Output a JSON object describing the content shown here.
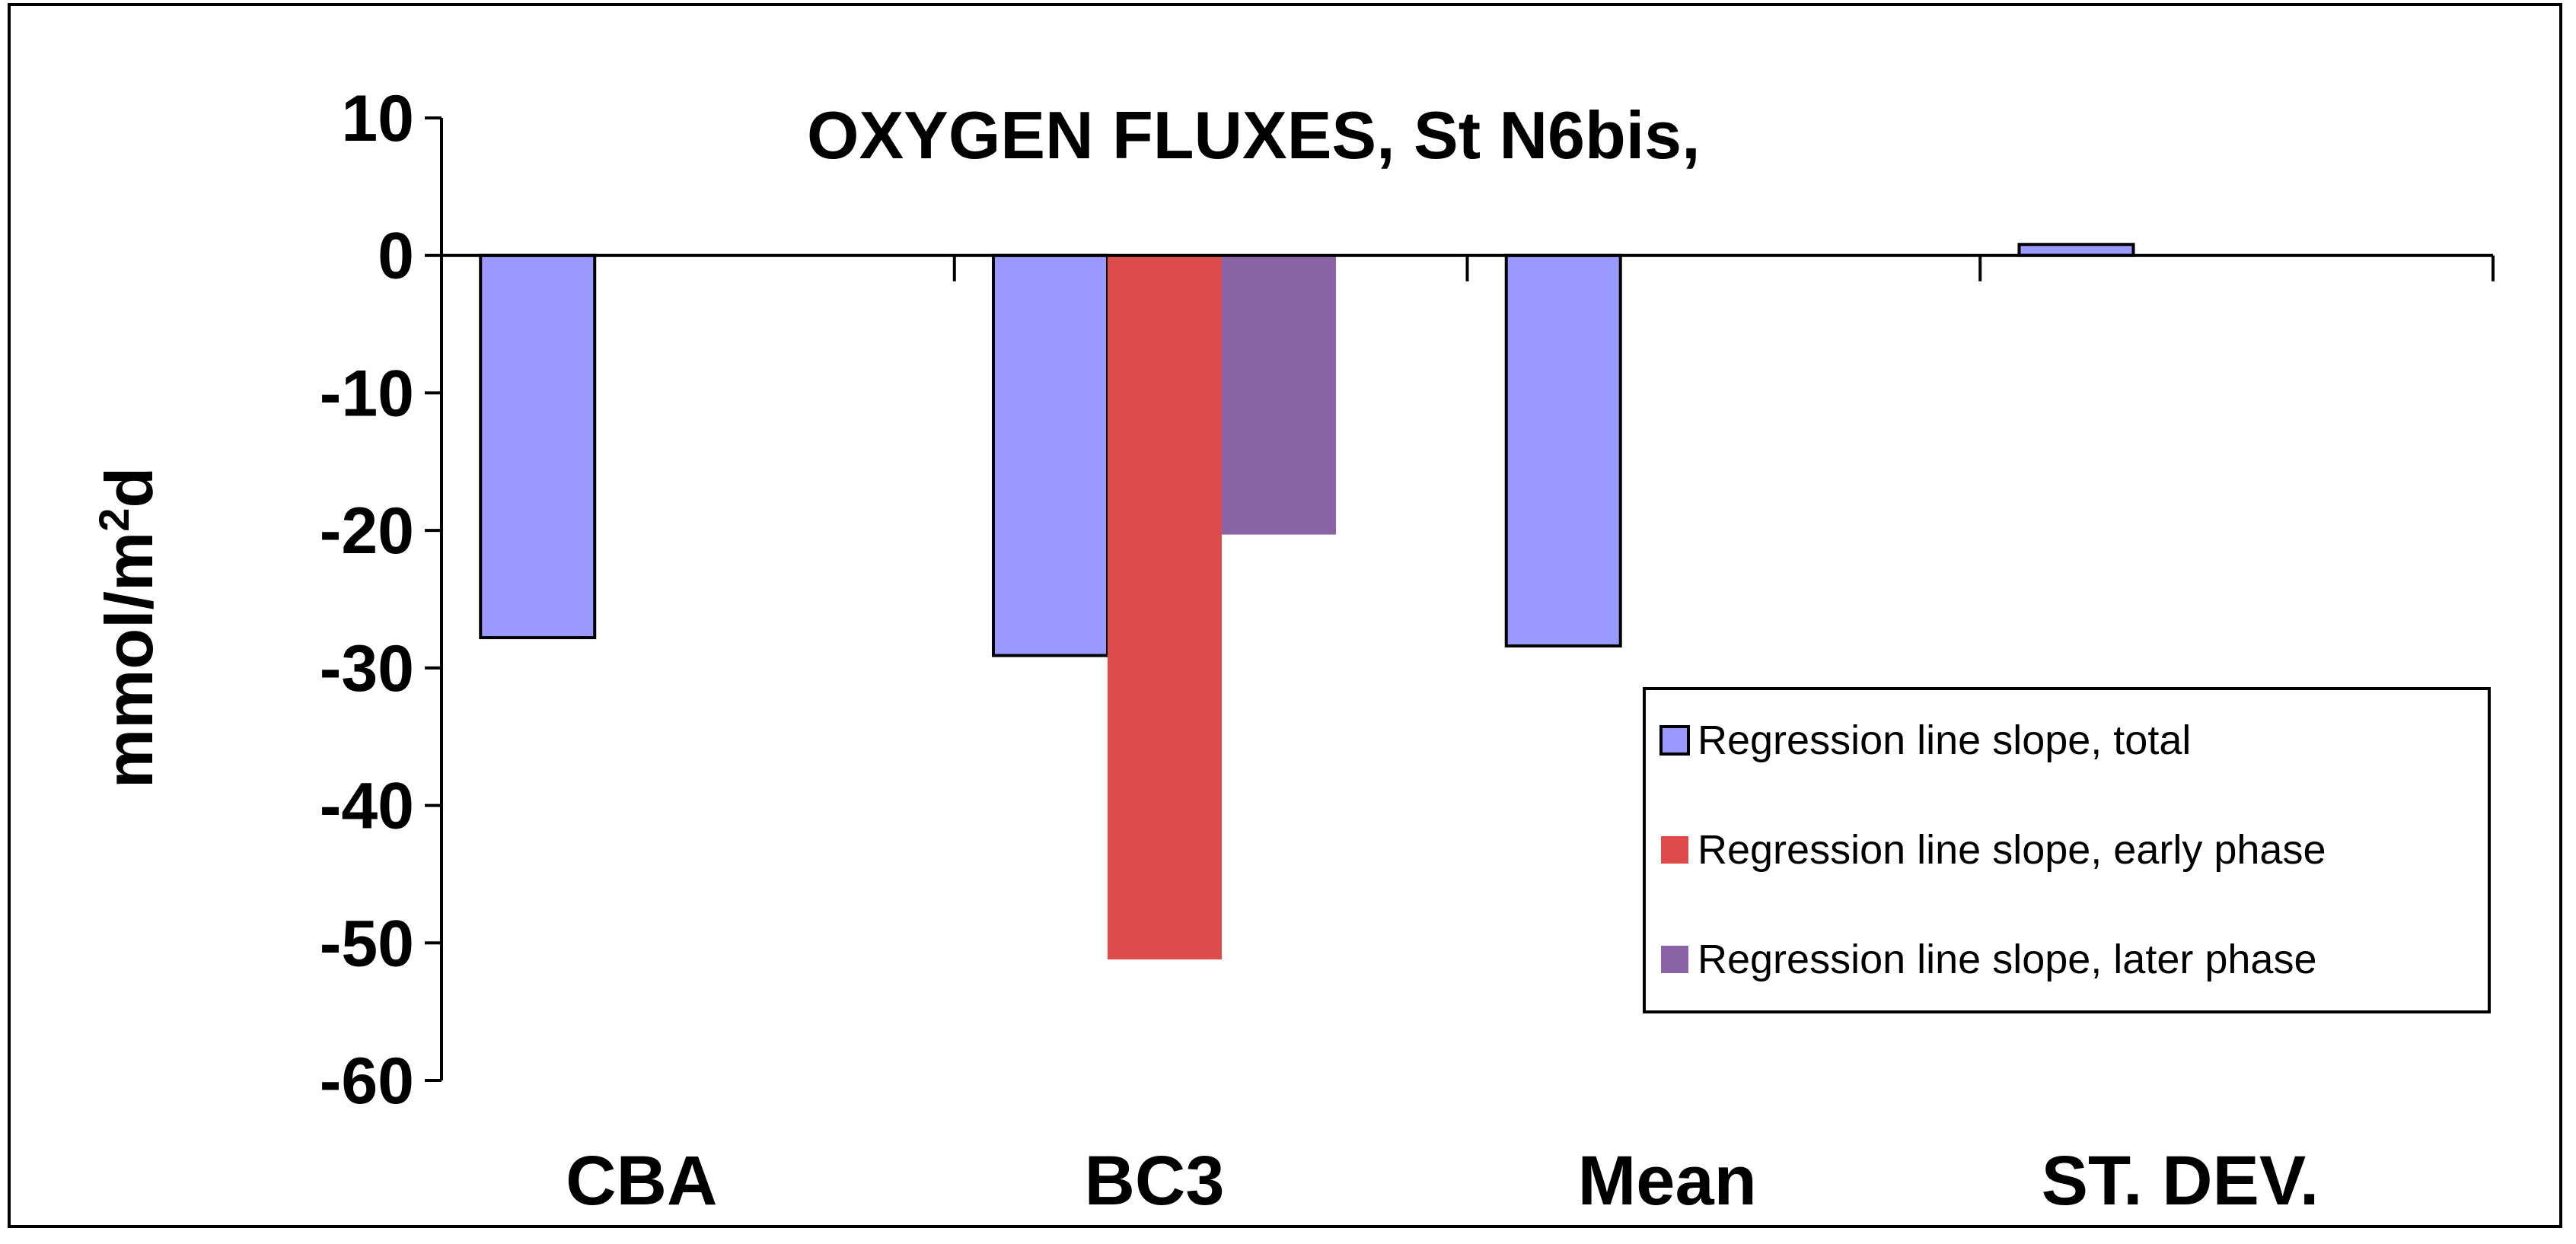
{
  "chart_data": {
    "type": "bar",
    "title": "OXYGEN FLUXES, St N6bis,",
    "xlabel": "",
    "ylabel_prefix": "mmol/m",
    "ylabel_sup": "2",
    "ylabel_suffix": "d",
    "ylim": [
      -60,
      10
    ],
    "yticks": [
      10,
      0,
      -10,
      -20,
      -30,
      -40,
      -50,
      -60
    ],
    "categories": [
      "CBA",
      "BC3",
      "Mean",
      "ST. DEV."
    ],
    "series": [
      {
        "name": "Regression line slope, total",
        "color": "#9999FF",
        "values": [
          -27.8,
          -29.1,
          -28.4,
          0.8
        ]
      },
      {
        "name": "Regression line slope, early phase",
        "color": "#DD4B4B",
        "values": [
          null,
          -51.2,
          null,
          null
        ]
      },
      {
        "name": "Regression line slope, later phase",
        "color": "#8A62A6",
        "values": [
          null,
          -20.3,
          null,
          null
        ]
      }
    ],
    "grid": false,
    "legend": "bottom-right"
  }
}
